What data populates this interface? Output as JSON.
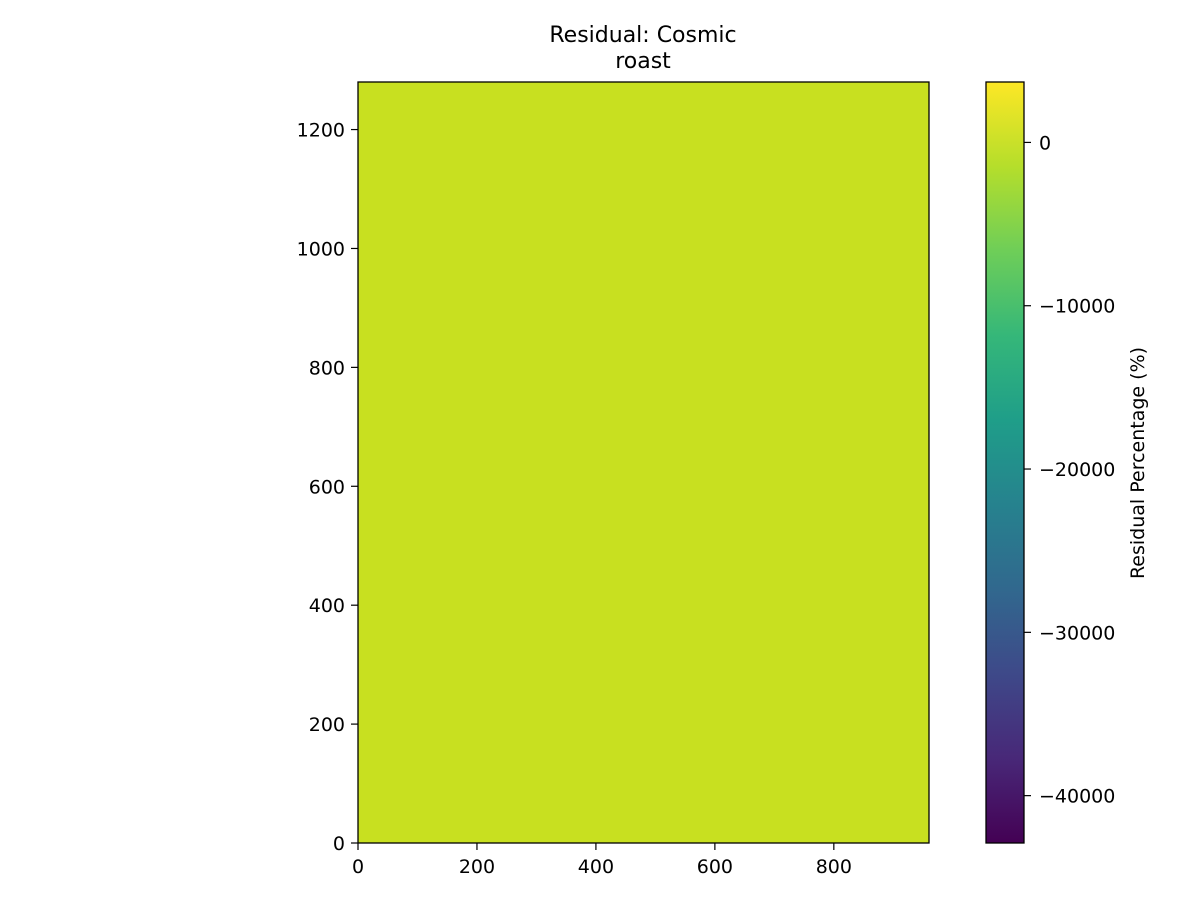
{
  "chart_data": {
    "type": "heatmap",
    "title_lines": [
      "Residual: Cosmic",
      "roast"
    ],
    "xlabel": "",
    "ylabel": "",
    "x_range": [
      0,
      960
    ],
    "y_range": [
      0,
      1280
    ],
    "x_ticks": [
      0,
      200,
      400,
      600,
      800
    ],
    "y_ticks": [
      0,
      200,
      400,
      600,
      800,
      1000,
      1200
    ],
    "grid": false,
    "field_value": 0,
    "field_color": "#c8e020",
    "colorbar": {
      "label": "Residual Percentage (%)",
      "range": [
        -42900,
        3700
      ],
      "ticks": [
        {
          "value": 0,
          "label": "0"
        },
        {
          "value": -10000,
          "label": "−10000"
        },
        {
          "value": -20000,
          "label": "−20000"
        },
        {
          "value": -30000,
          "label": "−30000"
        },
        {
          "value": -40000,
          "label": "−40000"
        }
      ],
      "colormap": "viridis",
      "colormap_stops": [
        "#440154",
        "#482878",
        "#3e4989",
        "#31688e",
        "#26828e",
        "#1f9e89",
        "#35b779",
        "#6ece58",
        "#b5de2b",
        "#fde725"
      ]
    }
  }
}
